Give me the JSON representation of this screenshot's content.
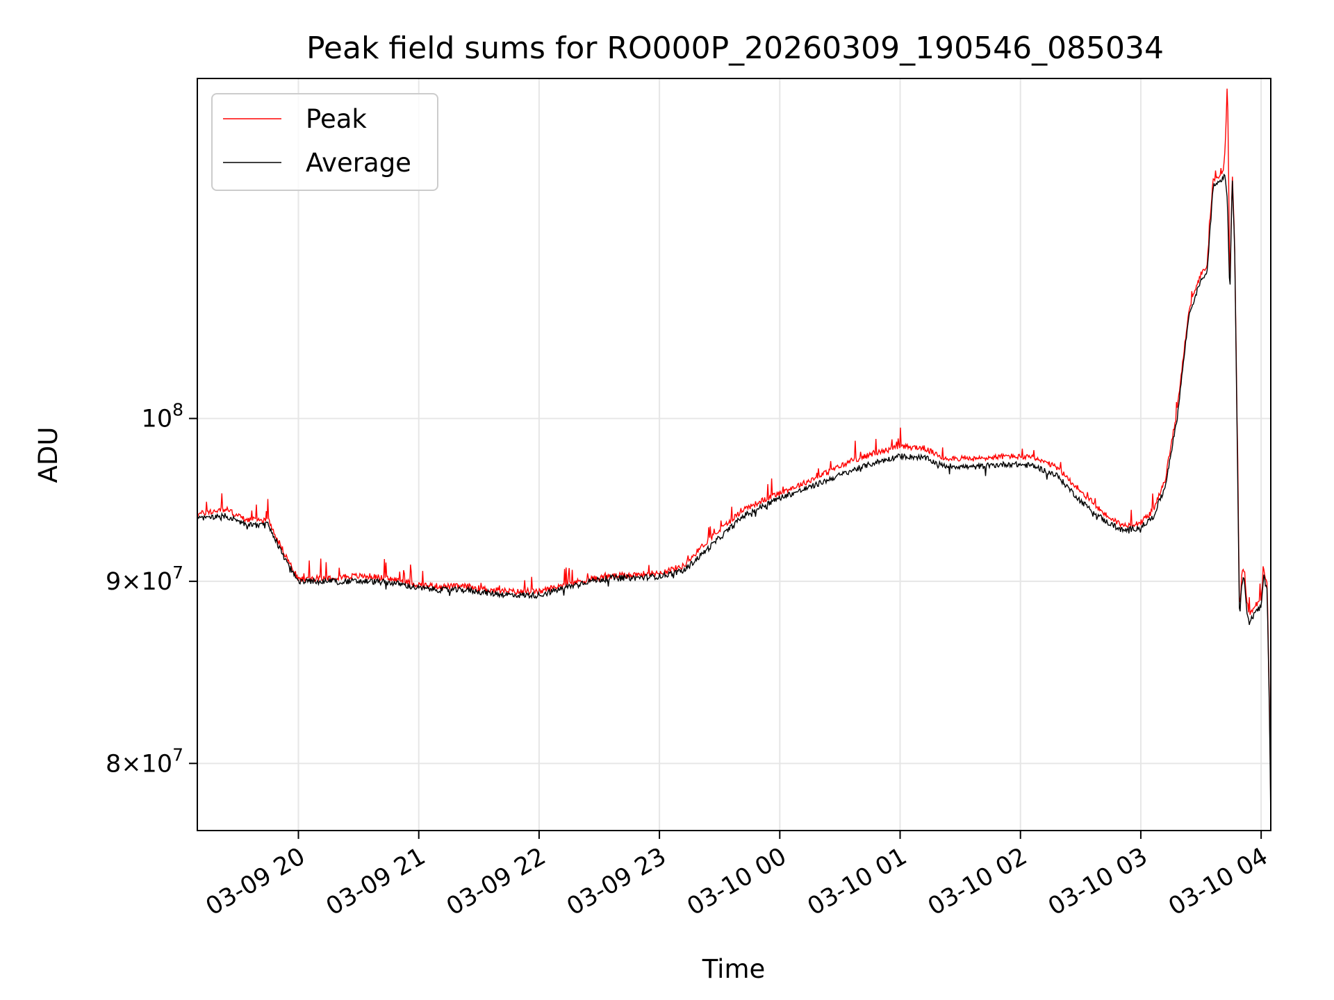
{
  "chart_data": {
    "type": "line",
    "title": "Peak field sums for RO000P_20260309_190546_085034",
    "xlabel": "Time",
    "ylabel": "ADU",
    "yscale": "log",
    "grid": true,
    "legend_position": "top-left",
    "xlim_hours": [
      -0.84,
      8.08
    ],
    "ylim": [
      76600000,
      124600000
    ],
    "x_ticks": [
      {
        "hour": 0,
        "label": "03-09 20"
      },
      {
        "hour": 1,
        "label": "03-09 21"
      },
      {
        "hour": 2,
        "label": "03-09 22"
      },
      {
        "hour": 3,
        "label": "03-09 23"
      },
      {
        "hour": 4,
        "label": "03-10 00"
      },
      {
        "hour": 5,
        "label": "03-10 01"
      },
      {
        "hour": 6,
        "label": "03-10 02"
      },
      {
        "hour": 7,
        "label": "03-10 03"
      },
      {
        "hour": 8,
        "label": "03-10 04"
      }
    ],
    "y_ticks": [
      {
        "value": 80000000,
        "base": "8×10",
        "exp": "7"
      },
      {
        "value": 90000000,
        "base": "9×10",
        "exp": "7"
      },
      {
        "value": 100000000,
        "base": "10",
        "exp": "8"
      }
    ],
    "series": [
      {
        "name": "Peak",
        "color": "#ff0000",
        "points": [
          [
            -0.84,
            94.0
          ],
          [
            -0.6,
            94.3
          ],
          [
            -0.45,
            93.7
          ],
          [
            -0.3,
            93.6
          ],
          [
            -0.26,
            93.8
          ],
          [
            -0.12,
            91.7
          ],
          [
            0.0,
            90.1
          ],
          [
            0.2,
            90.2
          ],
          [
            0.4,
            90.3
          ],
          [
            0.6,
            90.3
          ],
          [
            0.8,
            90.1
          ],
          [
            1.0,
            89.8
          ],
          [
            1.2,
            89.7
          ],
          [
            1.4,
            89.7
          ],
          [
            1.6,
            89.5
          ],
          [
            1.8,
            89.4
          ],
          [
            2.0,
            89.4
          ],
          [
            2.2,
            89.8
          ],
          [
            2.4,
            90.1
          ],
          [
            2.6,
            90.3
          ],
          [
            2.8,
            90.4
          ],
          [
            3.0,
            90.5
          ],
          [
            3.2,
            90.9
          ],
          [
            3.4,
            92.4
          ],
          [
            3.7,
            94.3
          ],
          [
            4.0,
            95.3
          ],
          [
            4.2,
            95.9
          ],
          [
            4.4,
            96.6
          ],
          [
            4.6,
            97.3
          ],
          [
            4.8,
            97.8
          ],
          [
            5.0,
            98.2
          ],
          [
            5.2,
            98.1
          ],
          [
            5.35,
            97.5
          ],
          [
            5.6,
            97.4
          ],
          [
            5.9,
            97.6
          ],
          [
            6.1,
            97.5
          ],
          [
            6.3,
            96.9
          ],
          [
            6.5,
            95.4
          ],
          [
            6.7,
            94.0
          ],
          [
            6.85,
            93.3
          ],
          [
            7.0,
            93.5
          ],
          [
            7.1,
            94.2
          ],
          [
            7.2,
            96.0
          ],
          [
            7.3,
            100.4
          ],
          [
            7.4,
            107.3
          ],
          [
            7.5,
            109.8
          ],
          [
            7.55,
            110.3
          ],
          [
            7.6,
            116.6
          ],
          [
            7.68,
            117.2
          ],
          [
            7.7,
            118.6
          ],
          [
            7.72,
            124.6
          ],
          [
            7.74,
            108.6
          ],
          [
            7.76,
            117.5
          ],
          [
            7.78,
            111.9
          ],
          [
            7.8,
            100.0
          ],
          [
            7.82,
            88.3
          ],
          [
            7.84,
            90.4
          ],
          [
            7.86,
            90.7
          ],
          [
            7.88,
            88.8
          ],
          [
            7.9,
            88.1
          ],
          [
            7.95,
            88.6
          ],
          [
            8.0,
            88.9
          ],
          [
            8.02,
            90.6
          ],
          [
            8.05,
            89.8
          ],
          [
            8.07,
            82.6
          ],
          [
            8.08,
            77.6
          ]
        ]
      },
      {
        "name": "Average",
        "color": "#000000",
        "points": [
          [
            -0.84,
            93.7
          ],
          [
            -0.6,
            93.9
          ],
          [
            -0.45,
            93.4
          ],
          [
            -0.3,
            93.3
          ],
          [
            -0.26,
            93.5
          ],
          [
            -0.12,
            91.4
          ],
          [
            0.0,
            90.0
          ],
          [
            0.2,
            90.0
          ],
          [
            0.4,
            90.0
          ],
          [
            0.6,
            90.0
          ],
          [
            0.8,
            89.9
          ],
          [
            1.0,
            89.6
          ],
          [
            1.2,
            89.5
          ],
          [
            1.4,
            89.5
          ],
          [
            1.6,
            89.3
          ],
          [
            1.8,
            89.2
          ],
          [
            2.0,
            89.2
          ],
          [
            2.2,
            89.6
          ],
          [
            2.4,
            90.0
          ],
          [
            2.6,
            90.2
          ],
          [
            2.8,
            90.2
          ],
          [
            3.0,
            90.3
          ],
          [
            3.2,
            90.6
          ],
          [
            3.4,
            91.9
          ],
          [
            3.7,
            93.9
          ],
          [
            4.0,
            95.0
          ],
          [
            4.2,
            95.5
          ],
          [
            4.4,
            96.1
          ],
          [
            4.6,
            96.7
          ],
          [
            4.8,
            97.2
          ],
          [
            5.0,
            97.6
          ],
          [
            5.2,
            97.5
          ],
          [
            5.35,
            97.0
          ],
          [
            5.6,
            96.9
          ],
          [
            5.9,
            97.1
          ],
          [
            6.1,
            97.0
          ],
          [
            6.3,
            96.4
          ],
          [
            6.5,
            94.8
          ],
          [
            6.7,
            93.6
          ],
          [
            6.85,
            93.0
          ],
          [
            7.0,
            93.2
          ],
          [
            7.1,
            93.8
          ],
          [
            7.2,
            95.6
          ],
          [
            7.3,
            99.9
          ],
          [
            7.4,
            106.9
          ],
          [
            7.5,
            109.4
          ],
          [
            7.55,
            109.9
          ],
          [
            7.6,
            116.2
          ],
          [
            7.68,
            116.8
          ],
          [
            7.7,
            117.2
          ],
          [
            7.72,
            115.0
          ],
          [
            7.74,
            108.2
          ],
          [
            7.76,
            117.0
          ],
          [
            7.78,
            111.5
          ],
          [
            7.8,
            99.5
          ],
          [
            7.82,
            87.9
          ],
          [
            7.84,
            90.0
          ],
          [
            7.86,
            90.1
          ],
          [
            7.88,
            88.4
          ],
          [
            7.9,
            87.6
          ],
          [
            7.95,
            88.2
          ],
          [
            8.0,
            88.5
          ],
          [
            8.02,
            90.3
          ],
          [
            8.05,
            89.5
          ],
          [
            8.07,
            82.2
          ],
          [
            8.08,
            77.2
          ]
        ]
      }
    ]
  }
}
